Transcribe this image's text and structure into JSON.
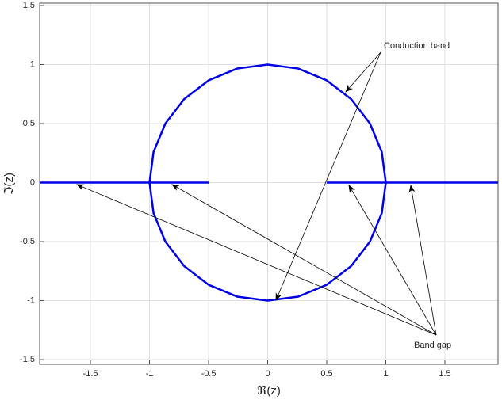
{
  "chart_data": {
    "type": "line",
    "x_label": "ℜ(z)",
    "y_label": "ℑ(z)",
    "xlim": [
      -1.93,
      1.95
    ],
    "ylim": [
      -1.54,
      1.52
    ],
    "xticks": [
      -1.5,
      -1,
      -0.5,
      0,
      0.5,
      1,
      1.5
    ],
    "yticks": [
      -1.5,
      -1,
      -0.5,
      0,
      0.5,
      1,
      1.5
    ],
    "grid": true,
    "series": [
      {
        "color": "#0000e6",
        "x": [
          1,
          0.966,
          0.866,
          0.707,
          0.5,
          0.259,
          0,
          -0.259,
          -0.5,
          -0.707,
          -0.866,
          -0.966,
          -1,
          -0.966,
          -0.866,
          -0.707,
          -0.5,
          -0.259,
          0,
          0.259,
          0.5,
          0.707,
          0.866,
          0.966,
          1
        ],
        "values": [
          0,
          0.259,
          0.5,
          0.707,
          0.866,
          0.966,
          1,
          0.966,
          0.866,
          0.707,
          0.5,
          0.259,
          0,
          -0.259,
          -0.5,
          -0.707,
          -0.866,
          -0.966,
          -1,
          -0.966,
          -0.866,
          -0.707,
          -0.5,
          -0.259,
          0
        ]
      },
      {
        "color": "#0000e6",
        "x": [
          -1.93,
          -0.5
        ],
        "values": [
          0,
          0
        ]
      },
      {
        "color": "#0000e6",
        "x": [
          0.5,
          1.95
        ],
        "values": [
          0,
          0
        ]
      }
    ],
    "annotations": [
      "Conduction band",
      "Band gap"
    ]
  }
}
